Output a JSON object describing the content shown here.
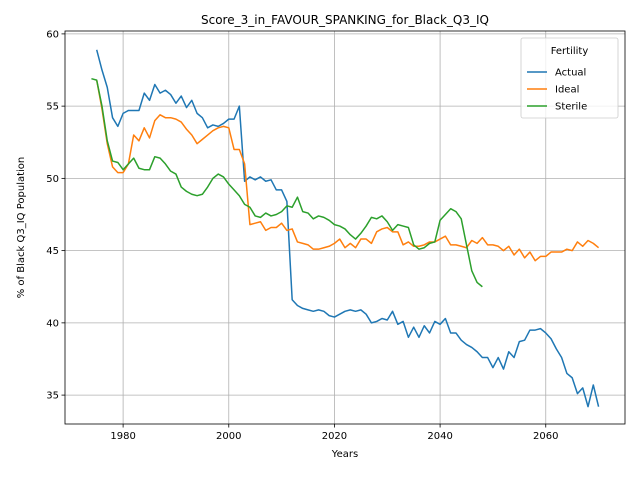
{
  "chart_data": {
    "type": "line",
    "title": "Score_3_in_FAVOUR_SPANKING_for_Black_Q3_IQ",
    "xlabel": "Years",
    "ylabel": "% of Black Q3_IQ Population",
    "xlim": [
      1969,
      2075
    ],
    "ylim": [
      33,
      60.2
    ],
    "xticks": [
      1980,
      2000,
      2020,
      2040,
      2060
    ],
    "yticks": [
      35,
      40,
      45,
      50,
      55,
      60
    ],
    "grid": true,
    "legend": {
      "title": "Fertility",
      "placement": "top-right"
    },
    "colors": {
      "Actual": "#1f77b4",
      "Ideal": "#ff7f0e",
      "Sterile": "#2ca02c"
    },
    "series": [
      {
        "name": "Actual",
        "x": [
          1975,
          1976,
          1977,
          1978,
          1979,
          1980,
          1981,
          1982,
          1983,
          1984,
          1985,
          1986,
          1987,
          1988,
          1989,
          1990,
          1991,
          1992,
          1993,
          1994,
          1995,
          1996,
          1997,
          1998,
          1999,
          2000,
          2001,
          2002,
          2003,
          2004,
          2005,
          2006,
          2007,
          2008,
          2009,
          2010,
          2011,
          2012,
          2013,
          2014,
          2015,
          2016,
          2017,
          2018,
          2019,
          2020,
          2021,
          2022,
          2023,
          2024,
          2025,
          2026,
          2027,
          2028,
          2029,
          2030,
          2031,
          2032,
          2033,
          2034,
          2035,
          2036,
          2037,
          2038,
          2039,
          2040,
          2041,
          2042,
          2043,
          2044,
          2045,
          2046,
          2047,
          2048,
          2049,
          2050,
          2051,
          2052,
          2053,
          2054,
          2055,
          2056,
          2057,
          2058,
          2059,
          2060,
          2061,
          2062,
          2063,
          2064,
          2065,
          2066,
          2067,
          2068,
          2069,
          2070
        ],
        "values": [
          58.9,
          57.5,
          56.3,
          54.2,
          53.6,
          54.5,
          54.7,
          54.7,
          54.7,
          55.9,
          55.4,
          56.5,
          55.9,
          56.1,
          55.8,
          55.2,
          55.7,
          54.9,
          55.4,
          54.5,
          54.2,
          53.5,
          53.7,
          53.6,
          53.8,
          54.1,
          54.1,
          55.0,
          49.8,
          50.1,
          49.9,
          50.1,
          49.8,
          49.9,
          49.2,
          49.2,
          48.4,
          41.6,
          41.2,
          41.0,
          40.9,
          40.8,
          40.9,
          40.8,
          40.5,
          40.4,
          40.6,
          40.8,
          40.9,
          40.8,
          40.9,
          40.6,
          40.0,
          40.1,
          40.3,
          40.2,
          40.8,
          39.9,
          40.1,
          39.0,
          39.7,
          39.0,
          39.8,
          39.3,
          40.1,
          39.9,
          40.3,
          39.3,
          39.3,
          38.8,
          38.5,
          38.3,
          38.0,
          37.6,
          37.6,
          36.9,
          37.6,
          36.8,
          38.0,
          37.6,
          38.7,
          38.8,
          39.5,
          39.5,
          39.6,
          39.3,
          38.9,
          38.2,
          37.6,
          36.5,
          36.2,
          35.1,
          35.5,
          34.2,
          35.7,
          34.2
        ]
      },
      {
        "name": "Ideal",
        "x": [
          1975,
          1976,
          1977,
          1978,
          1979,
          1980,
          1981,
          1982,
          1983,
          1984,
          1985,
          1986,
          1987,
          1988,
          1989,
          1990,
          1991,
          1992,
          1993,
          1994,
          1995,
          1996,
          1997,
          1998,
          1999,
          2000,
          2001,
          2002,
          2003,
          2004,
          2005,
          2006,
          2007,
          2008,
          2009,
          2010,
          2011,
          2012,
          2013,
          2014,
          2015,
          2016,
          2017,
          2018,
          2019,
          2020,
          2021,
          2022,
          2023,
          2024,
          2025,
          2026,
          2027,
          2028,
          2029,
          2030,
          2031,
          2032,
          2033,
          2034,
          2035,
          2036,
          2037,
          2038,
          2039,
          2040,
          2041,
          2042,
          2043,
          2044,
          2045,
          2046,
          2047,
          2048,
          2049,
          2050,
          2051,
          2052,
          2053,
          2054,
          2055,
          2056,
          2057,
          2058,
          2059,
          2060,
          2061,
          2062,
          2063,
          2064,
          2065,
          2066,
          2067,
          2068,
          2069,
          2070
        ],
        "values": [
          56.8,
          54.8,
          52.4,
          50.8,
          50.4,
          50.4,
          51.0,
          53.0,
          52.6,
          53.5,
          52.8,
          54.0,
          54.4,
          54.2,
          54.2,
          54.1,
          53.9,
          53.4,
          53.0,
          52.4,
          52.7,
          53.0,
          53.3,
          53.5,
          53.6,
          53.5,
          52.0,
          52.0,
          51.0,
          46.8,
          46.9,
          47.0,
          46.4,
          46.6,
          46.6,
          46.9,
          46.4,
          46.5,
          45.6,
          45.5,
          45.4,
          45.1,
          45.1,
          45.2,
          45.3,
          45.5,
          45.8,
          45.2,
          45.5,
          45.2,
          45.8,
          45.8,
          45.5,
          46.3,
          46.5,
          46.6,
          46.3,
          46.3,
          45.4,
          45.6,
          45.3,
          45.3,
          45.4,
          45.6,
          45.6,
          45.8,
          46.0,
          45.4,
          45.4,
          45.3,
          45.2,
          45.7,
          45.5,
          45.9,
          45.4,
          45.4,
          45.3,
          45.0,
          45.3,
          44.7,
          45.1,
          44.5,
          44.9,
          44.3,
          44.6,
          44.6,
          44.9,
          44.9,
          44.9,
          45.1,
          45.0,
          45.6,
          45.3,
          45.7,
          45.5,
          45.2
        ]
      },
      {
        "name": "Sterile",
        "x": [
          1974,
          1975,
          1976,
          1977,
          1978,
          1979,
          1980,
          1981,
          1982,
          1983,
          1984,
          1985,
          1986,
          1987,
          1988,
          1989,
          1990,
          1991,
          1992,
          1993,
          1994,
          1995,
          1996,
          1997,
          1998,
          1999,
          2000,
          2001,
          2002,
          2003,
          2004,
          2005,
          2006,
          2007,
          2008,
          2009,
          2010,
          2011,
          2012,
          2013,
          2014,
          2015,
          2016,
          2017,
          2018,
          2019,
          2020,
          2021,
          2022,
          2023,
          2024,
          2025,
          2026,
          2027,
          2028,
          2029,
          2030,
          2031,
          2032,
          2033,
          2034,
          2035,
          2036,
          2037,
          2038,
          2039,
          2040,
          2041,
          2042,
          2043,
          2044,
          2045,
          2046,
          2047,
          2048
        ],
        "values": [
          56.9,
          56.8,
          55.0,
          52.6,
          51.2,
          51.1,
          50.6,
          51.0,
          51.4,
          50.7,
          50.6,
          50.6,
          51.5,
          51.4,
          51.0,
          50.5,
          50.3,
          49.4,
          49.1,
          48.9,
          48.8,
          48.9,
          49.4,
          50.0,
          50.3,
          50.1,
          49.6,
          49.2,
          48.8,
          48.2,
          48.0,
          47.4,
          47.3,
          47.6,
          47.4,
          47.5,
          47.7,
          48.1,
          48.0,
          48.7,
          47.7,
          47.6,
          47.2,
          47.4,
          47.3,
          47.1,
          46.8,
          46.7,
          46.5,
          46.1,
          45.8,
          46.2,
          46.7,
          47.3,
          47.2,
          47.4,
          47.0,
          46.4,
          46.8,
          46.7,
          46.6,
          45.4,
          45.1,
          45.2,
          45.5,
          45.6,
          47.1,
          47.5,
          47.9,
          47.7,
          47.2,
          45.4,
          43.6,
          42.8,
          42.5
        ]
      }
    ]
  }
}
